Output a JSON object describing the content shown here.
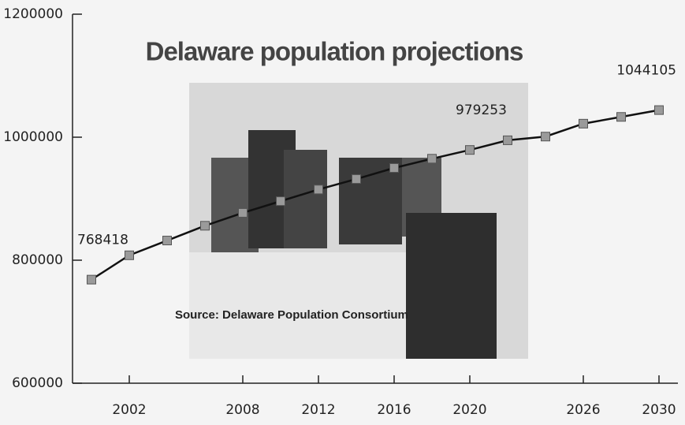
{
  "chart_data": {
    "type": "line",
    "title": "Delaware population projections",
    "annotations": [
      "Source: Delaware Population Consortium"
    ],
    "x": [
      2000,
      2002,
      2004,
      2006,
      2008,
      2010,
      2012,
      2014,
      2016,
      2018,
      2020,
      2022,
      2024,
      2026,
      2028,
      2030
    ],
    "series": [
      {
        "name": null,
        "color": "#111111",
        "values": [
          768418,
          808000,
          832000,
          856000,
          877000,
          896000,
          915000,
          932000,
          950000,
          965000,
          979253,
          995000,
          1001000,
          1022000,
          1033000,
          1044105
        ],
        "value_labels": [
          "768418",
          null,
          null,
          null,
          null,
          null,
          null,
          null,
          null,
          null,
          "979253",
          null,
          null,
          null,
          null,
          "1044105"
        ]
      }
    ],
    "xlim": [
      1999,
      2031
    ],
    "xticks": [
      2002,
      2008,
      2012,
      2016,
      2020,
      2026,
      2030
    ],
    "ylim": [
      600000,
      1200000
    ],
    "yticks": [
      600000,
      800000,
      1000000,
      1200000
    ],
    "grid": false
  }
}
